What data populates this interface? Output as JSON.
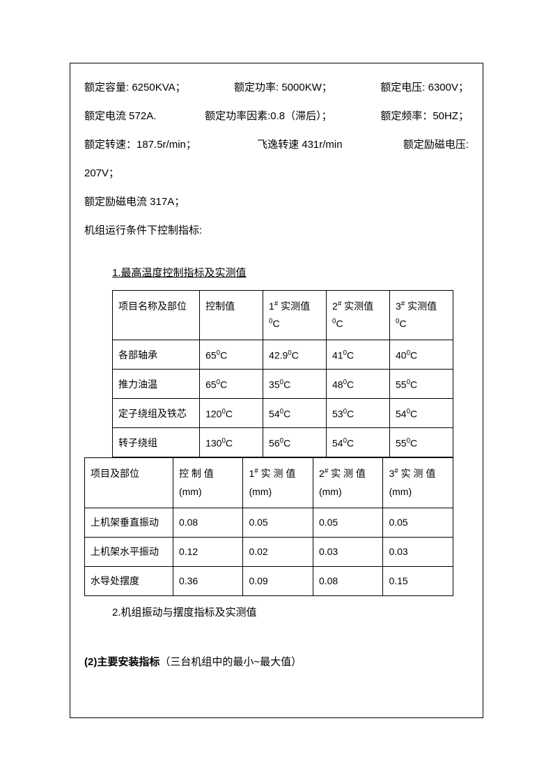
{
  "specs": {
    "row1": {
      "capacity": "额定容量: 6250KVA；",
      "power": "额定功率: 5000KW；",
      "voltage": "额定电压: 6300V；"
    },
    "row2": {
      "current": "额定电流 572A.",
      "power_factor": "额定功率因素:0.8（滞后）；",
      "frequency": "额定频率：50HZ；"
    },
    "row3": {
      "rated_speed": "额定转速：187.5r/min；",
      "runaway_speed": "飞逸转速  431r/min",
      "excitation_voltage": "额定励磁电压:"
    },
    "row4": "207V；",
    "row5": "额定励磁电流 317A；",
    "row6": "机组运行条件下控制指标:"
  },
  "table1": {
    "title": "1.最高温度控制指标及实测值",
    "headers": {
      "name": "项目名称及部位",
      "ctrl": "控制值",
      "v1_prefix": "1",
      "v1_suffix": " 实测值",
      "v2_prefix": "2",
      "v2_suffix": " 实测值",
      "v3_prefix": "3",
      "v3_suffix": " 实测值",
      "unit": "C"
    },
    "rows": [
      {
        "name": "各部轴承",
        "ctrl": "65",
        "v1": "42.9",
        "v2": "41",
        "v3": "40"
      },
      {
        "name": "推力油温",
        "ctrl": "65",
        "v1": "35",
        "v2": "48",
        "v3": "55"
      },
      {
        "name": "定子绕组及铁芯",
        "ctrl": "120",
        "v1": "54",
        "v2": "53",
        "v3": "54"
      },
      {
        "name": "转子绕组",
        "ctrl": "130",
        "v1": "56",
        "v2": "54",
        "v3": "55"
      }
    ]
  },
  "table2": {
    "headers": {
      "name": "项目及部位",
      "ctrl": "控 制 值",
      "v1_prefix": "1",
      "v1_suffix": " 实 测 值",
      "v2_prefix": "2",
      "v2_suffix": " 实 测 值",
      "v3_prefix": "3",
      "v3_suffix": " 实 测 值",
      "unit": "(mm)"
    },
    "rows": [
      {
        "name": "上机架垂直振动",
        "ctrl": "0.08",
        "v1": "0.05",
        "v2": "0.05",
        "v3": "0.05"
      },
      {
        "name": "上机架水平振动",
        "ctrl": "0.12",
        "v1": "0.02",
        "v2": "0.03",
        "v3": "0.03"
      },
      {
        "name": "水导处摆度",
        "ctrl": "0.36",
        "v1": "0.09",
        "v2": "0.08",
        "v3": "0.15"
      }
    ],
    "footer": "2.机组振动与摆度指标及实测值"
  },
  "footer": {
    "bold": "(2)主要安装指标",
    "normal": "（三台机组中的最小~最大值）"
  }
}
